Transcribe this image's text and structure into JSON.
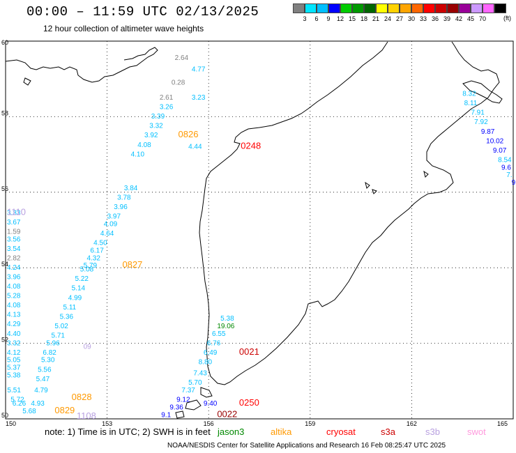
{
  "header": {
    "title": "00:00 – 11:59 UTC 02/13/2025",
    "subtitle": "12 hour collection of altimeter wave heights"
  },
  "scale": {
    "colors": [
      "#808080",
      "#00e5ff",
      "#00bfff",
      "#0000ff",
      "#00cc00",
      "#009900",
      "#006600",
      "#ffff00",
      "#ffd200",
      "#ffa500",
      "#ff6600",
      "#ff0000",
      "#cc0000",
      "#990000",
      "#990099",
      "#cc99ff",
      "#ff66ff",
      "#000000"
    ],
    "labels": [
      "3",
      "6",
      "9",
      "12",
      "15",
      "18",
      "21",
      "24",
      "27",
      "30",
      "33",
      "36",
      "39",
      "42",
      "45",
      "70",
      "(ft)"
    ]
  },
  "axes": {
    "lon_ticks": [
      "150",
      "153",
      "156",
      "159",
      "162",
      "165"
    ],
    "lat_ticks": [
      "60",
      "58",
      "56",
      "54",
      "52",
      "50"
    ]
  },
  "footer": {
    "note": "note: 1) Time is in UTC; 2) SWH is in feet",
    "satellites": [
      {
        "name": "jason3",
        "color": "#008800"
      },
      {
        "name": "altika",
        "color": "#ff9900"
      },
      {
        "name": "cryosat",
        "color": "#ff0000"
      },
      {
        "name": "s3a",
        "color": "#cc0000"
      },
      {
        "name": "s3b",
        "color": "#b8a0e0"
      },
      {
        "name": "swot",
        "color": "#ff99dd"
      }
    ],
    "credit": "NOAA/NESDIS Center for Satellite Applications and Research     16 Feb 08:25:47 UTC 2025"
  },
  "map_labels": [
    {
      "t": "2.64",
      "c": "#808080",
      "lon": 155.0,
      "lat": 59.5
    },
    {
      "t": "4.77",
      "c": "#00bfff",
      "lon": 155.5,
      "lat": 59.2
    },
    {
      "t": "0.28",
      "c": "#808080",
      "lon": 154.9,
      "lat": 58.85
    },
    {
      "t": "2.61",
      "c": "#808080",
      "lon": 154.55,
      "lat": 58.45
    },
    {
      "t": "3.23",
      "c": "#00bfff",
      "lon": 155.5,
      "lat": 58.45
    },
    {
      "t": "3.26",
      "c": "#00bfff",
      "lon": 154.55,
      "lat": 58.2
    },
    {
      "t": "3.39",
      "c": "#00bfff",
      "lon": 154.3,
      "lat": 57.95
    },
    {
      "t": "3.32",
      "c": "#00bfff",
      "lon": 154.25,
      "lat": 57.7
    },
    {
      "t": "3.92",
      "c": "#00bfff",
      "lon": 154.1,
      "lat": 57.45
    },
    {
      "t": "0826",
      "c": "#ff9900",
      "lon": 155.1,
      "lat": 57.45
    },
    {
      "t": "4.08",
      "c": "#00bfff",
      "lon": 153.9,
      "lat": 57.2
    },
    {
      "t": "4.44",
      "c": "#00bfff",
      "lon": 155.4,
      "lat": 57.15
    },
    {
      "t": "0248",
      "c": "#ff0000",
      "lon": 156.95,
      "lat": 57.15
    },
    {
      "t": "4.10",
      "c": "#00bfff",
      "lon": 153.7,
      "lat": 56.95
    },
    {
      "t": "3.84",
      "c": "#00bfff",
      "lon": 153.5,
      "lat": 56.05
    },
    {
      "t": "3.78",
      "c": "#00bfff",
      "lon": 153.3,
      "lat": 55.8
    },
    {
      "t": "3.96",
      "c": "#00bfff",
      "lon": 153.2,
      "lat": 55.55
    },
    {
      "t": "3.97",
      "c": "#00bfff",
      "lon": 153.0,
      "lat": 55.3
    },
    {
      "t": "4.09",
      "c": "#00bfff",
      "lon": 152.9,
      "lat": 55.1
    },
    {
      "t": "4.64",
      "c": "#00bfff",
      "lon": 152.8,
      "lat": 54.85
    },
    {
      "t": "4.50",
      "c": "#00bfff",
      "lon": 152.6,
      "lat": 54.6
    },
    {
      "t": "6.17",
      "c": "#00bfff",
      "lon": 152.5,
      "lat": 54.4
    },
    {
      "t": "4.32",
      "c": "#00bfff",
      "lon": 152.4,
      "lat": 54.2
    },
    {
      "t": "5.79",
      "c": "#00bfff",
      "lon": 152.3,
      "lat": 54.0
    },
    {
      "t": "0827",
      "c": "#ff9900",
      "lon": 153.45,
      "lat": 54.0
    },
    {
      "t": "5.08",
      "c": "#00bfff",
      "lon": 152.2,
      "lat": 53.9
    },
    {
      "t": "5.22",
      "c": "#00bfff",
      "lon": 152.05,
      "lat": 53.65
    },
    {
      "t": "5.14",
      "c": "#00bfff",
      "lon": 151.95,
      "lat": 53.4
    },
    {
      "t": "4.99",
      "c": "#00bfff",
      "lon": 151.85,
      "lat": 53.15
    },
    {
      "t": "5.11",
      "c": "#00bfff",
      "lon": 151.7,
      "lat": 52.9
    },
    {
      "t": "5.36",
      "c": "#00bfff",
      "lon": 151.6,
      "lat": 52.65
    },
    {
      "t": "5.02",
      "c": "#00bfff",
      "lon": 151.45,
      "lat": 52.4
    },
    {
      "t": "5.71",
      "c": "#00bfff",
      "lon": 151.35,
      "lat": 52.15
    },
    {
      "t": "5.96",
      "c": "#00bfff",
      "lon": 151.2,
      "lat": 51.95
    },
    {
      "t": "09",
      "c": "#b8a0e0",
      "lon": 152.3,
      "lat": 51.85
    },
    {
      "t": "6.82",
      "c": "#00bfff",
      "lon": 151.1,
      "lat": 51.7
    },
    {
      "t": "5.30",
      "c": "#00bfff",
      "lon": 151.05,
      "lat": 51.5
    },
    {
      "t": "5.56",
      "c": "#00bfff",
      "lon": 150.95,
      "lat": 51.25
    },
    {
      "t": "5.47",
      "c": "#00bfff",
      "lon": 150.9,
      "lat": 51.0
    },
    {
      "t": "4.79",
      "c": "#00bfff",
      "lon": 150.85,
      "lat": 50.7
    },
    {
      "t": "0828",
      "c": "#ff9900",
      "lon": 151.95,
      "lat": 50.5
    },
    {
      "t": "4.93",
      "c": "#00bfff",
      "lon": 150.75,
      "lat": 50.35
    },
    {
      "t": "0829",
      "c": "#ff9900",
      "lon": 151.45,
      "lat": 50.15
    },
    {
      "t": "1108",
      "c": "#b8a0e0",
      "lon": 152.1,
      "lat": 50.0
    },
    {
      "t": "3.33",
      "c": "#00bfff",
      "lon": 147.2,
      "lat": 55.4
    },
    {
      "t": "1110",
      "c": "#b8a0e0",
      "lon": 148.4,
      "lat": 55.4
    },
    {
      "t": "3.67",
      "c": "#00bfff",
      "lon": 147.35,
      "lat": 55.15
    },
    {
      "t": "1.59",
      "c": "#808080",
      "lon": 147.55,
      "lat": 54.9
    },
    {
      "t": "3.56",
      "c": "#00bfff",
      "lon": 147.75,
      "lat": 54.7
    },
    {
      "t": "3.54",
      "c": "#00bfff",
      "lon": 147.85,
      "lat": 54.45
    },
    {
      "t": "2.82",
      "c": "#808080",
      "lon": 148.0,
      "lat": 54.2
    },
    {
      "t": "4.24",
      "c": "#00bfff",
      "lon": 148.2,
      "lat": 53.95
    },
    {
      "t": "3.96",
      "c": "#00bfff",
      "lon": 148.35,
      "lat": 53.7
    },
    {
      "t": "4.08",
      "c": "#00bfff",
      "lon": 148.5,
      "lat": 53.45
    },
    {
      "t": "5.28",
      "c": "#00bfff",
      "lon": 148.65,
      "lat": 53.2
    },
    {
      "t": "4.08",
      "c": "#00bfff",
      "lon": 148.8,
      "lat": 52.95
    },
    {
      "t": "4.13",
      "c": "#00bfff",
      "lon": 148.95,
      "lat": 52.7
    },
    {
      "t": "4.29",
      "c": "#00bfff",
      "lon": 149.1,
      "lat": 52.45
    },
    {
      "t": "4.40",
      "c": "#00bfff",
      "lon": 149.3,
      "lat": 52.2
    },
    {
      "t": "3.32",
      "c": "#00bfff",
      "lon": 149.4,
      "lat": 51.95
    },
    {
      "t": "4.12",
      "c": "#00bfff",
      "lon": 149.55,
      "lat": 51.7
    },
    {
      "t": "5.05",
      "c": "#00bfff",
      "lon": 149.7,
      "lat": 51.5
    },
    {
      "t": "5.37",
      "c": "#00bfff",
      "lon": 149.8,
      "lat": 51.3
    },
    {
      "t": "5.38",
      "c": "#00bfff",
      "lon": 149.9,
      "lat": 51.1
    },
    {
      "t": "5.51",
      "c": "#00bfff",
      "lon": 150.05,
      "lat": 50.7
    },
    {
      "t": "5.72",
      "c": "#00bfff",
      "lon": 150.15,
      "lat": 50.45
    },
    {
      "t": "6.26",
      "c": "#00bfff",
      "lon": 150.2,
      "lat": 50.35
    },
    {
      "t": "5.68",
      "c": "#00bfff",
      "lon": 150.5,
      "lat": 50.15
    },
    {
      "t": "5.38",
      "c": "#00bfff",
      "lon": 156.35,
      "lat": 52.6
    },
    {
      "t": "19.06",
      "c": "#008800",
      "lon": 156.25,
      "lat": 52.4
    },
    {
      "t": "6.55",
      "c": "#00bfff",
      "lon": 156.1,
      "lat": 52.2
    },
    {
      "t": "6.76",
      "c": "#00bfff",
      "lon": 155.95,
      "lat": 51.95
    },
    {
      "t": "0021",
      "c": "#cc0000",
      "lon": 156.9,
      "lat": 51.7
    },
    {
      "t": "6.49",
      "c": "#00bfff",
      "lon": 155.85,
      "lat": 51.7
    },
    {
      "t": "8.80",
      "c": "#00bfff",
      "lon": 155.7,
      "lat": 51.45
    },
    {
      "t": "7.43",
      "c": "#00bfff",
      "lon": 155.55,
      "lat": 51.15
    },
    {
      "t": "5.70",
      "c": "#00bfff",
      "lon": 155.4,
      "lat": 50.9
    },
    {
      "t": "7.37",
      "c": "#00bfff",
      "lon": 155.2,
      "lat": 50.7
    },
    {
      "t": "9.12",
      "c": "#0000ff",
      "lon": 155.05,
      "lat": 50.45
    },
    {
      "t": "9.40",
      "c": "#0000ff",
      "lon": 155.85,
      "lat": 50.35
    },
    {
      "t": "0250",
      "c": "#ff0000",
      "lon": 156.9,
      "lat": 50.35
    },
    {
      "t": "9.36",
      "c": "#0000ff",
      "lon": 154.85,
      "lat": 50.25
    },
    {
      "t": "9.1",
      "c": "#0000ff",
      "lon": 154.6,
      "lat": 50.05
    },
    {
      "t": "0022",
      "c": "#990000",
      "lon": 156.25,
      "lat": 50.05
    },
    {
      "t": "8.32",
      "c": "#00bfff",
      "lon": 163.5,
      "lat": 58.55
    },
    {
      "t": "8.11",
      "c": "#00bfff",
      "lon": 163.55,
      "lat": 58.3
    },
    {
      "t": "7.91",
      "c": "#00bfff",
      "lon": 163.75,
      "lat": 58.05
    },
    {
      "t": "7.92",
      "c": "#00bfff",
      "lon": 163.85,
      "lat": 57.8
    },
    {
      "t": "9.87",
      "c": "#0000ff",
      "lon": 164.05,
      "lat": 57.55
    },
    {
      "t": "10.02",
      "c": "#0000ff",
      "lon": 164.2,
      "lat": 57.3
    },
    {
      "t": "9.07",
      "c": "#0000ff",
      "lon": 164.4,
      "lat": 57.05
    },
    {
      "t": "8.54",
      "c": "#00bfff",
      "lon": 164.55,
      "lat": 56.8
    },
    {
      "t": "9.6",
      "c": "#0000ff",
      "lon": 164.65,
      "lat": 56.6
    },
    {
      "t": "7.",
      "c": "#00bfff",
      "lon": 164.8,
      "lat": 56.4
    },
    {
      "t": "9",
      "c": "#0000ff",
      "lon": 164.95,
      "lat": 56.2
    }
  ]
}
